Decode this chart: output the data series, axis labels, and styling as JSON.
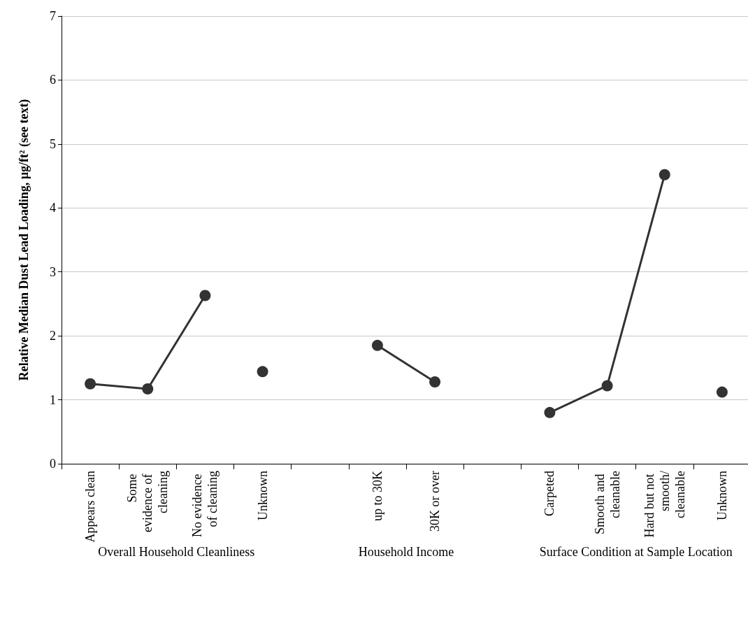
{
  "chart_data": {
    "type": "line",
    "ylabel": "Relative Median Dust Lead Loading, µg/ft² (see text)",
    "categories": [
      "Appears clean",
      "Some evidence of cleaning",
      "No evidence of cleaning",
      "Unknown",
      null,
      "up to 30K",
      "30K or over",
      null,
      "Carpeted",
      "Smooth and cleanable",
      "Hard but not smooth/cleanable",
      "Unknown"
    ],
    "series": [
      {
        "color": "#333333",
        "values": [
          1.25,
          1.17,
          2.63,
          null,
          null,
          1.85,
          1.28,
          null,
          0.8,
          1.22,
          4.52,
          null
        ]
      },
      {
        "type": "scatter",
        "color": "#333333",
        "values": [
          null,
          null,
          null,
          1.44,
          null,
          null,
          null,
          null,
          null,
          null,
          null,
          1.12
        ]
      }
    ],
    "annotations": [
      "Overall Household Cleanliness",
      "Household Income",
      "Surface Condition at Sample Location"
    ],
    "ylim": [
      0,
      7
    ],
    "yticks": [
      0,
      1,
      2,
      3,
      4,
      5,
      6,
      7
    ],
    "grid": "y",
    "marker": "circle",
    "line_style": "solid"
  }
}
